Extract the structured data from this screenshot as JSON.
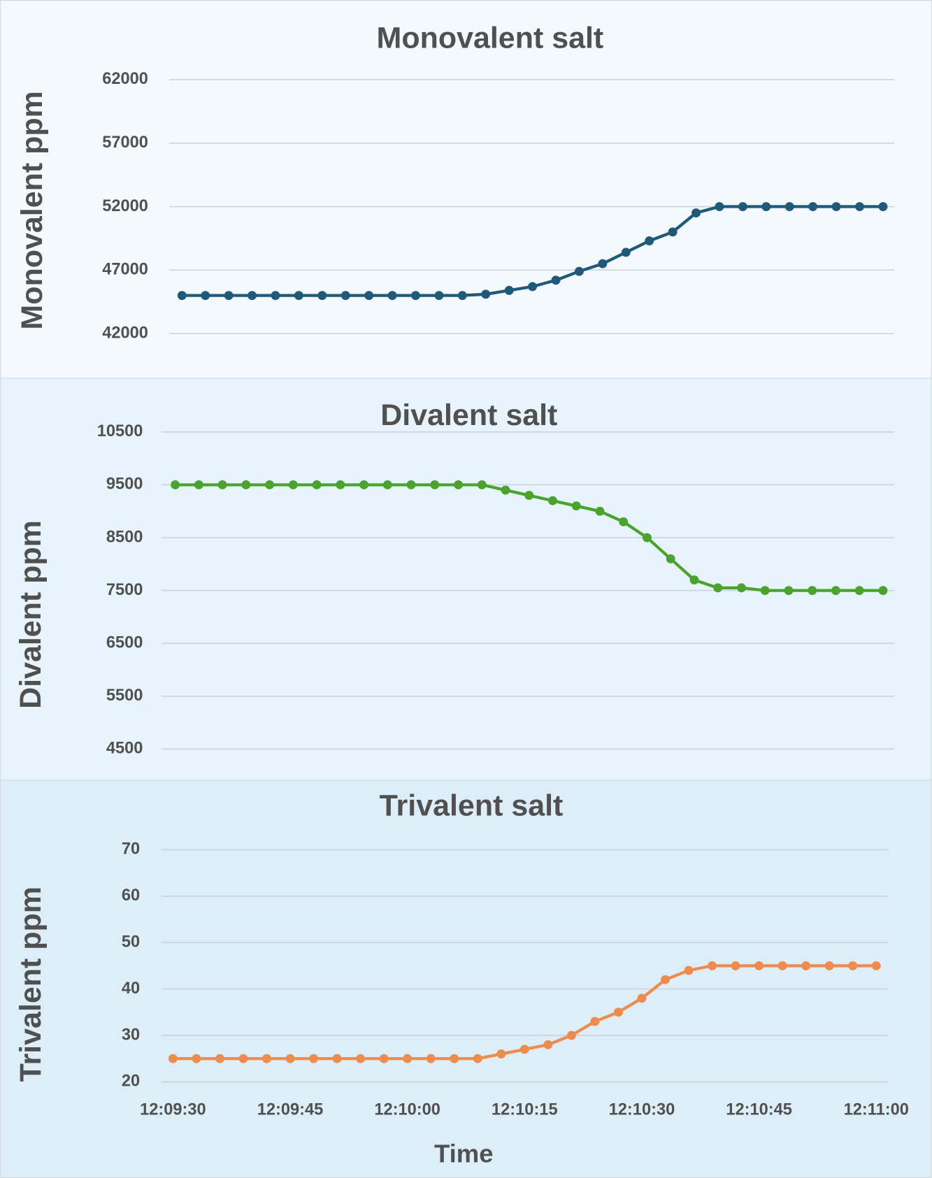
{
  "chart_data": [
    {
      "type": "line",
      "title": "Monovalent salt",
      "y_label": "Monovalent ppm",
      "color": "#1f5a78",
      "grid": true,
      "x": [
        "12:09:30",
        "12:09:33",
        "12:09:36",
        "12:09:39",
        "12:09:42",
        "12:09:45",
        "12:09:48",
        "12:09:51",
        "12:09:54",
        "12:09:57",
        "12:10:00",
        "12:10:03",
        "12:10:06",
        "12:10:09",
        "12:10:12",
        "12:10:15",
        "12:10:18",
        "12:10:21",
        "12:10:24",
        "12:10:27",
        "12:10:30",
        "12:10:33",
        "12:10:36",
        "12:10:39",
        "12:10:42",
        "12:10:45",
        "12:10:48",
        "12:10:51",
        "12:10:54",
        "12:10:57",
        "12:11:00"
      ],
      "values": [
        45000,
        45000,
        45000,
        45000,
        45000,
        45000,
        45000,
        45000,
        45000,
        45000,
        45000,
        45000,
        45000,
        45100,
        45400,
        45700,
        46200,
        46900,
        47500,
        48400,
        49300,
        50000,
        51500,
        52000,
        52000,
        52000,
        52000,
        52000,
        52000,
        52000,
        52000
      ],
      "xlim": [
        "12:09:30",
        "12:11:00"
      ],
      "ylim": [
        42000,
        62000
      ],
      "yticks": [
        42000,
        47000,
        52000,
        57000,
        62000
      ]
    },
    {
      "type": "line",
      "title": "Divalent salt",
      "y_label": "Divalent ppm",
      "color": "#4aa32d",
      "grid": true,
      "x": [
        "12:09:30",
        "12:09:33",
        "12:09:36",
        "12:09:39",
        "12:09:42",
        "12:09:45",
        "12:09:48",
        "12:09:51",
        "12:09:54",
        "12:09:57",
        "12:10:00",
        "12:10:03",
        "12:10:06",
        "12:10:09",
        "12:10:12",
        "12:10:15",
        "12:10:18",
        "12:10:21",
        "12:10:24",
        "12:10:27",
        "12:10:30",
        "12:10:33",
        "12:10:36",
        "12:10:39",
        "12:10:42",
        "12:10:45",
        "12:10:48",
        "12:10:51",
        "12:10:54",
        "12:10:57",
        "12:11:00"
      ],
      "values": [
        9500,
        9500,
        9500,
        9500,
        9500,
        9500,
        9500,
        9500,
        9500,
        9500,
        9500,
        9500,
        9500,
        9500,
        9400,
        9300,
        9200,
        9100,
        9000,
        8800,
        8500,
        8100,
        7700,
        7550,
        7550,
        7500,
        7500,
        7500,
        7500,
        7500,
        7500
      ],
      "xlim": [
        "12:09:30",
        "12:11:00"
      ],
      "ylim": [
        4500,
        10500
      ],
      "yticks": [
        4500,
        5500,
        6500,
        7500,
        8500,
        9500,
        10500
      ]
    },
    {
      "type": "line",
      "title": "Trivalent salt",
      "y_label": "Trivalent  ppm",
      "x_label": "Time",
      "color": "#ee8c4f",
      "grid": true,
      "x": [
        "12:09:30",
        "12:09:33",
        "12:09:36",
        "12:09:39",
        "12:09:42",
        "12:09:45",
        "12:09:48",
        "12:09:51",
        "12:09:54",
        "12:09:57",
        "12:10:00",
        "12:10:03",
        "12:10:06",
        "12:10:09",
        "12:10:12",
        "12:10:15",
        "12:10:18",
        "12:10:21",
        "12:10:24",
        "12:10:27",
        "12:10:30",
        "12:10:33",
        "12:10:36",
        "12:10:39",
        "12:10:42",
        "12:10:45",
        "12:10:48",
        "12:10:51",
        "12:10:54",
        "12:10:57",
        "12:11:00"
      ],
      "values": [
        25,
        25,
        25,
        25,
        25,
        25,
        25,
        25,
        25,
        25,
        25,
        25,
        25,
        25,
        26,
        27,
        28,
        30,
        33,
        35,
        38,
        42,
        44,
        45,
        45,
        45,
        45,
        45,
        45,
        45,
        45
      ],
      "xlim": [
        "12:09:30",
        "12:11:00"
      ],
      "ylim": [
        20,
        70
      ],
      "yticks": [
        20,
        30,
        40,
        50,
        60,
        70
      ],
      "xticks": [
        "12:09:30",
        "12:09:45",
        "12:10:00",
        "12:10:15",
        "12:10:30",
        "12:10:45",
        "12:11:00"
      ]
    }
  ]
}
